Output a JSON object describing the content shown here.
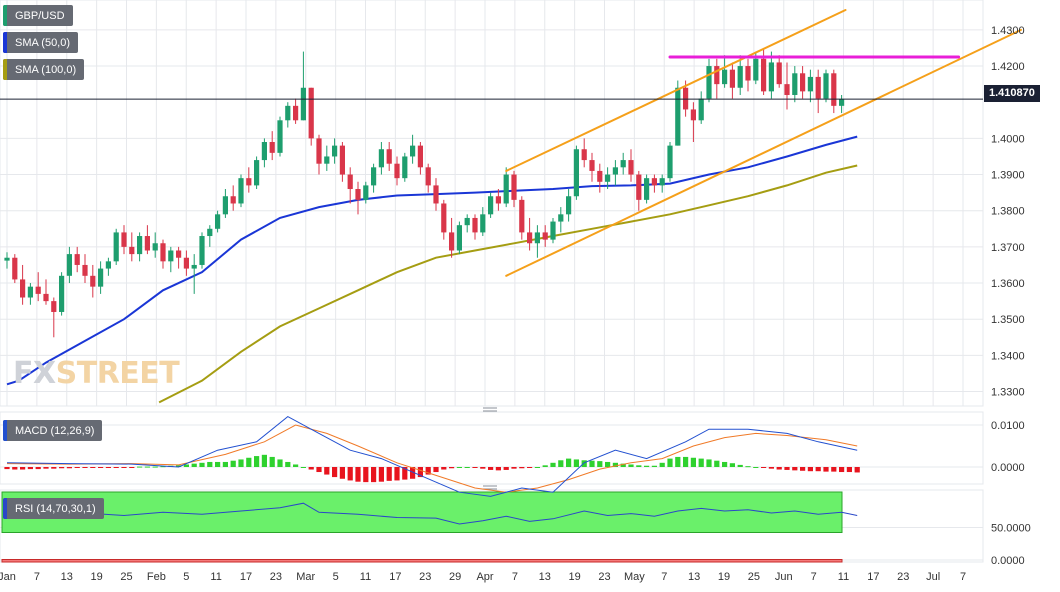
{
  "legend": {
    "symbol": "GBP/USD",
    "sma50": "SMA (50,0)",
    "sma100": "SMA (100,0)",
    "macd": "MACD (12,26,9)",
    "rsi": "RSI (14,70,30,1)"
  },
  "last_price": "1.410870",
  "watermark": {
    "part1": "FX",
    "part2": "STREET"
  },
  "colors": {
    "up": "#1e9e6e",
    "down": "#d9364a",
    "sma50": "#1a36d6",
    "sma100": "#a59d12",
    "channel": "#f5a01a",
    "resistance": "#e81fd8",
    "macd_line": "#2250d0",
    "signal_line": "#f07a28",
    "hist_up": "#2ed12e",
    "hist_down": "#e8141e",
    "rsi_line": "#2a48c8",
    "rsi_overbought": "#6af06a",
    "rsi_oversold": "#f47a7a",
    "grid": "#e6e8ec",
    "price_line": "#1a2033"
  },
  "x_labels": [
    "Jan",
    "7",
    "13",
    "19",
    "25",
    "Feb",
    "5",
    "11",
    "17",
    "23",
    "Mar",
    "5",
    "11",
    "17",
    "23",
    "29",
    "Apr",
    "7",
    "13",
    "19",
    "23",
    "May",
    "7",
    "13",
    "19",
    "25",
    "Jun",
    "7",
    "11",
    "17",
    "23",
    "Jul",
    "7"
  ],
  "price_axis": [
    "1.4300",
    "1.4200",
    "1.4000",
    "1.3900",
    "1.3800",
    "1.3700",
    "1.3600",
    "1.3500",
    "1.3400",
    "1.3300"
  ],
  "macd_axis": [
    "0.0100",
    "0.0000"
  ],
  "rsi_axis": [
    "50.0000",
    "0.0000"
  ],
  "chart_data": {
    "type": "candlestick",
    "title": "GBP/USD",
    "ylim": [
      1.326,
      1.4355
    ],
    "candles": [
      [
        1.3662,
        1.3685,
        1.364,
        1.367
      ],
      [
        1.367,
        1.368,
        1.36,
        1.361
      ],
      [
        1.361,
        1.365,
        1.354,
        1.356
      ],
      [
        1.356,
        1.36,
        1.354,
        1.359
      ],
      [
        1.359,
        1.363,
        1.355,
        1.357
      ],
      [
        1.357,
        1.361,
        1.354,
        1.355
      ],
      [
        1.355,
        1.356,
        1.345,
        1.352
      ],
      [
        1.352,
        1.363,
        1.351,
        1.362
      ],
      [
        1.362,
        1.37,
        1.36,
        1.368
      ],
      [
        1.368,
        1.37,
        1.363,
        1.365
      ],
      [
        1.365,
        1.368,
        1.36,
        1.362
      ],
      [
        1.362,
        1.365,
        1.356,
        1.359
      ],
      [
        1.359,
        1.366,
        1.357,
        1.364
      ],
      [
        1.364,
        1.367,
        1.362,
        1.366
      ],
      [
        1.366,
        1.375,
        1.365,
        1.374
      ],
      [
        1.374,
        1.376,
        1.368,
        1.37
      ],
      [
        1.37,
        1.374,
        1.366,
        1.368
      ],
      [
        1.368,
        1.374,
        1.366,
        1.373
      ],
      [
        1.373,
        1.376,
        1.368,
        1.369
      ],
      [
        1.369,
        1.374,
        1.367,
        1.371
      ],
      [
        1.371,
        1.372,
        1.364,
        1.366
      ],
      [
        1.366,
        1.37,
        1.363,
        1.369
      ],
      [
        1.369,
        1.37,
        1.364,
        1.367
      ],
      [
        1.367,
        1.369,
        1.362,
        1.364
      ],
      [
        1.364,
        1.368,
        1.357,
        1.365
      ],
      [
        1.365,
        1.374,
        1.364,
        1.373
      ],
      [
        1.373,
        1.376,
        1.37,
        1.375
      ],
      [
        1.375,
        1.38,
        1.374,
        1.379
      ],
      [
        1.379,
        1.386,
        1.378,
        1.384
      ],
      [
        1.384,
        1.387,
        1.38,
        1.382
      ],
      [
        1.382,
        1.39,
        1.381,
        1.389
      ],
      [
        1.389,
        1.392,
        1.385,
        1.387
      ],
      [
        1.387,
        1.395,
        1.386,
        1.394
      ],
      [
        1.394,
        1.4,
        1.392,
        1.399
      ],
      [
        1.399,
        1.402,
        1.394,
        1.396
      ],
      [
        1.396,
        1.406,
        1.395,
        1.405
      ],
      [
        1.405,
        1.41,
        1.403,
        1.409
      ],
      [
        1.409,
        1.411,
        1.404,
        1.405
      ],
      [
        1.405,
        1.424,
        1.405,
        1.414
      ],
      [
        1.414,
        1.414,
        1.398,
        1.4
      ],
      [
        1.4,
        1.401,
        1.39,
        1.393
      ],
      [
        1.393,
        1.398,
        1.391,
        1.395
      ],
      [
        1.395,
        1.4,
        1.393,
        1.398
      ],
      [
        1.398,
        1.399,
        1.388,
        1.39
      ],
      [
        1.39,
        1.392,
        1.382,
        1.386
      ],
      [
        1.386,
        1.388,
        1.379,
        1.383
      ],
      [
        1.383,
        1.388,
        1.382,
        1.387
      ],
      [
        1.387,
        1.393,
        1.385,
        1.392
      ],
      [
        1.392,
        1.399,
        1.39,
        1.397
      ],
      [
        1.397,
        1.399,
        1.391,
        1.393
      ],
      [
        1.393,
        1.395,
        1.387,
        1.389
      ],
      [
        1.389,
        1.396,
        1.388,
        1.395
      ],
      [
        1.395,
        1.401,
        1.393,
        1.398
      ],
      [
        1.398,
        1.399,
        1.39,
        1.392
      ],
      [
        1.392,
        1.393,
        1.385,
        1.387
      ],
      [
        1.387,
        1.389,
        1.38,
        1.382
      ],
      [
        1.382,
        1.383,
        1.372,
        1.374
      ],
      [
        1.374,
        1.378,
        1.367,
        1.369
      ],
      [
        1.369,
        1.377,
        1.368,
        1.376
      ],
      [
        1.376,
        1.379,
        1.374,
        1.378
      ],
      [
        1.378,
        1.379,
        1.372,
        1.374
      ],
      [
        1.374,
        1.381,
        1.373,
        1.379
      ],
      [
        1.379,
        1.385,
        1.378,
        1.384
      ],
      [
        1.384,
        1.386,
        1.38,
        1.382
      ],
      [
        1.382,
        1.392,
        1.381,
        1.39
      ],
      [
        1.39,
        1.391,
        1.381,
        1.383
      ],
      [
        1.383,
        1.384,
        1.372,
        1.374
      ],
      [
        1.374,
        1.378,
        1.369,
        1.371
      ],
      [
        1.371,
        1.376,
        1.367,
        1.374
      ],
      [
        1.374,
        1.376,
        1.37,
        1.372
      ],
      [
        1.372,
        1.378,
        1.371,
        1.377
      ],
      [
        1.377,
        1.381,
        1.374,
        1.379
      ],
      [
        1.379,
        1.386,
        1.377,
        1.384
      ],
      [
        1.384,
        1.398,
        1.383,
        1.397
      ],
      [
        1.397,
        1.4,
        1.392,
        1.394
      ],
      [
        1.394,
        1.396,
        1.388,
        1.391
      ],
      [
        1.391,
        1.393,
        1.385,
        1.388
      ],
      [
        1.388,
        1.392,
        1.386,
        1.39
      ],
      [
        1.39,
        1.394,
        1.387,
        1.392
      ],
      [
        1.392,
        1.396,
        1.39,
        1.394
      ],
      [
        1.394,
        1.397,
        1.388,
        1.39
      ],
      [
        1.39,
        1.391,
        1.38,
        1.383
      ],
      [
        1.383,
        1.39,
        1.382,
        1.389
      ],
      [
        1.389,
        1.39,
        1.385,
        1.387
      ],
      [
        1.387,
        1.39,
        1.385,
        1.389
      ],
      [
        1.389,
        1.399,
        1.388,
        1.398
      ],
      [
        1.398,
        1.416,
        1.398,
        1.414
      ],
      [
        1.414,
        1.416,
        1.406,
        1.408
      ],
      [
        1.408,
        1.41,
        1.399,
        1.405
      ],
      [
        1.405,
        1.413,
        1.404,
        1.411
      ],
      [
        1.411,
        1.422,
        1.41,
        1.42
      ],
      [
        1.42,
        1.422,
        1.411,
        1.415
      ],
      [
        1.415,
        1.423,
        1.414,
        1.419
      ],
      [
        1.419,
        1.421,
        1.411,
        1.414
      ],
      [
        1.414,
        1.423,
        1.412,
        1.42
      ],
      [
        1.42,
        1.422,
        1.413,
        1.416
      ],
      [
        1.416,
        1.424,
        1.415,
        1.422
      ],
      [
        1.422,
        1.425,
        1.412,
        1.413
      ],
      [
        1.413,
        1.424,
        1.411,
        1.421
      ],
      [
        1.421,
        1.423,
        1.414,
        1.415
      ],
      [
        1.415,
        1.421,
        1.408,
        1.412
      ],
      [
        1.412,
        1.42,
        1.41,
        1.418
      ],
      [
        1.418,
        1.42,
        1.411,
        1.413
      ],
      [
        1.413,
        1.419,
        1.41,
        1.417
      ],
      [
        1.417,
        1.419,
        1.407,
        1.411
      ],
      [
        1.411,
        1.419,
        1.41,
        1.418
      ],
      [
        1.418,
        1.419,
        1.407,
        1.409
      ],
      [
        1.409,
        1.412,
        1.407,
        1.4109
      ]
    ],
    "sma50": [
      [
        0,
        1.332
      ],
      [
        1.5,
        1.333
      ],
      [
        5,
        1.338
      ],
      [
        10,
        1.344
      ],
      [
        15,
        1.35
      ],
      [
        20,
        1.358
      ],
      [
        25,
        1.363
      ],
      [
        30,
        1.372
      ],
      [
        35,
        1.378
      ],
      [
        40,
        1.381
      ],
      [
        45,
        1.383
      ],
      [
        50,
        1.3842
      ],
      [
        55,
        1.3846
      ],
      [
        60,
        1.385
      ],
      [
        65,
        1.3855
      ],
      [
        70,
        1.386
      ],
      [
        75,
        1.3868
      ],
      [
        80,
        1.387
      ],
      [
        85,
        1.3875
      ],
      [
        90,
        1.39
      ],
      [
        95,
        1.392
      ],
      [
        100,
        1.395
      ],
      [
        105,
        1.3982
      ],
      [
        109,
        1.4005
      ]
    ],
    "sma100": [
      [
        19.5,
        1.327
      ],
      [
        25,
        1.333
      ],
      [
        30,
        1.341
      ],
      [
        35,
        1.348
      ],
      [
        40,
        1.353
      ],
      [
        45,
        1.358
      ],
      [
        50,
        1.363
      ],
      [
        55,
        1.367
      ],
      [
        60,
        1.369
      ],
      [
        65,
        1.371
      ],
      [
        70,
        1.373
      ],
      [
        75,
        1.375
      ],
      [
        80,
        1.377
      ],
      [
        85,
        1.379
      ],
      [
        90,
        1.3815
      ],
      [
        95,
        1.384
      ],
      [
        100,
        1.387
      ],
      [
        105,
        1.3905
      ],
      [
        109,
        1.3925
      ]
    ],
    "channel_upper": [
      [
        64,
        1.391
      ],
      [
        107.5,
        1.4355
      ]
    ],
    "channel_lower": [
      [
        64,
        1.362
      ],
      [
        130,
        1.43
      ]
    ],
    "resistance": [
      [
        85,
        1.4225
      ],
      [
        122,
        1.4225
      ]
    ],
    "macd": [
      [
        0,
        0.001
      ],
      [
        8,
        0.0008
      ],
      [
        16,
        0.0007
      ],
      [
        22,
        0.0
      ],
      [
        27,
        0.004
      ],
      [
        32,
        0.006
      ],
      [
        36,
        0.012
      ],
      [
        40,
        0.008
      ],
      [
        44,
        0.004
      ],
      [
        48,
        0.002
      ],
      [
        53,
        -0.002
      ],
      [
        58,
        -0.006
      ],
      [
        62,
        -0.007
      ],
      [
        66,
        -0.005
      ],
      [
        70,
        -0.006
      ],
      [
        74,
        0.001
      ],
      [
        78,
        0.004
      ],
      [
        82,
        0.002
      ],
      [
        87,
        0.006
      ],
      [
        90,
        0.009
      ],
      [
        95,
        0.009
      ],
      [
        100,
        0.008
      ],
      [
        104,
        0.006
      ],
      [
        109,
        0.004
      ]
    ],
    "signal": [
      [
        0,
        0.0008
      ],
      [
        8,
        0.0007
      ],
      [
        16,
        0.0008
      ],
      [
        22,
        0.0005
      ],
      [
        28,
        0.003
      ],
      [
        33,
        0.006
      ],
      [
        37,
        0.01
      ],
      [
        41,
        0.008
      ],
      [
        45,
        0.005
      ],
      [
        50,
        0.001
      ],
      [
        55,
        -0.002
      ],
      [
        60,
        -0.005
      ],
      [
        64,
        -0.006
      ],
      [
        68,
        -0.005
      ],
      [
        72,
        -0.003
      ],
      [
        76,
        -0.0005
      ],
      [
        80,
        0.001
      ],
      [
        84,
        0.002
      ],
      [
        88,
        0.005
      ],
      [
        92,
        0.007
      ],
      [
        96,
        0.008
      ],
      [
        100,
        0.0075
      ],
      [
        105,
        0.0065
      ],
      [
        109,
        0.005
      ]
    ],
    "macd_hist": [
      -0.0005,
      -0.0006,
      -0.0006,
      -0.0005,
      -0.0005,
      -0.0004,
      -0.0004,
      -0.0003,
      -0.0003,
      -0.0002,
      -0.0002,
      -0.0002,
      -0.0001,
      -0.0001,
      -0.0001,
      -0.0001,
      -0.0001,
      0.0001,
      0.0001,
      0.0001,
      0.0002,
      0.0003,
      0.0004,
      0.0006,
      0.0008,
      0.001,
      0.0012,
      0.0012,
      0.0012,
      0.0015,
      0.0018,
      0.0022,
      0.0026,
      0.0029,
      0.0024,
      0.0018,
      0.0012,
      0.0006,
      0.0,
      -0.0006,
      -0.0012,
      -0.0018,
      -0.0024,
      -0.0028,
      -0.0032,
      -0.0035,
      -0.0036,
      -0.0036,
      -0.0035,
      -0.0033,
      -0.0032,
      -0.003,
      -0.0028,
      -0.0024,
      -0.0018,
      -0.0012,
      -0.0006,
      -0.0003,
      0.0,
      0.0,
      -0.0002,
      -0.0004,
      -0.0007,
      -0.0008,
      -0.0007,
      -0.0004,
      -0.0003,
      -0.0002,
      0.0,
      0.0004,
      0.001,
      0.0016,
      0.002,
      0.0018,
      0.0016,
      0.0015,
      0.0014,
      0.0012,
      0.001,
      0.0008,
      0.0006,
      0.0004,
      0.0003,
      0.0003,
      0.001,
      0.002,
      0.0024,
      0.0024,
      0.0022,
      0.002,
      0.0018,
      0.0015,
      0.0012,
      0.0009,
      0.0005,
      0.0002,
      0.0,
      -0.0002,
      -0.0004,
      -0.0006,
      -0.0007,
      -0.0008,
      -0.0009,
      -0.001,
      -0.001,
      -0.0011,
      -0.0011,
      -0.0012,
      -0.0012,
      -0.0013
    ],
    "rsi": [
      [
        0,
        55
      ],
      [
        5,
        52
      ],
      [
        10,
        57
      ],
      [
        15,
        53
      ],
      [
        20,
        58
      ],
      [
        25,
        55
      ],
      [
        30,
        60
      ],
      [
        35,
        65
      ],
      [
        38,
        72
      ],
      [
        40,
        58
      ],
      [
        45,
        55
      ],
      [
        50,
        50
      ],
      [
        55,
        49
      ],
      [
        58,
        40
      ],
      [
        61,
        45
      ],
      [
        64,
        52
      ],
      [
        67,
        44
      ],
      [
        70,
        48
      ],
      [
        74,
        60
      ],
      [
        77,
        53
      ],
      [
        80,
        56
      ],
      [
        83,
        52
      ],
      [
        86,
        60
      ],
      [
        89,
        64
      ],
      [
        92,
        60
      ],
      [
        95,
        62
      ],
      [
        98,
        57
      ],
      [
        101,
        60
      ],
      [
        104,
        55
      ],
      [
        107,
        58
      ],
      [
        109,
        53
      ]
    ],
    "rsi_overbought": 70,
    "rsi_oversold": 30
  }
}
